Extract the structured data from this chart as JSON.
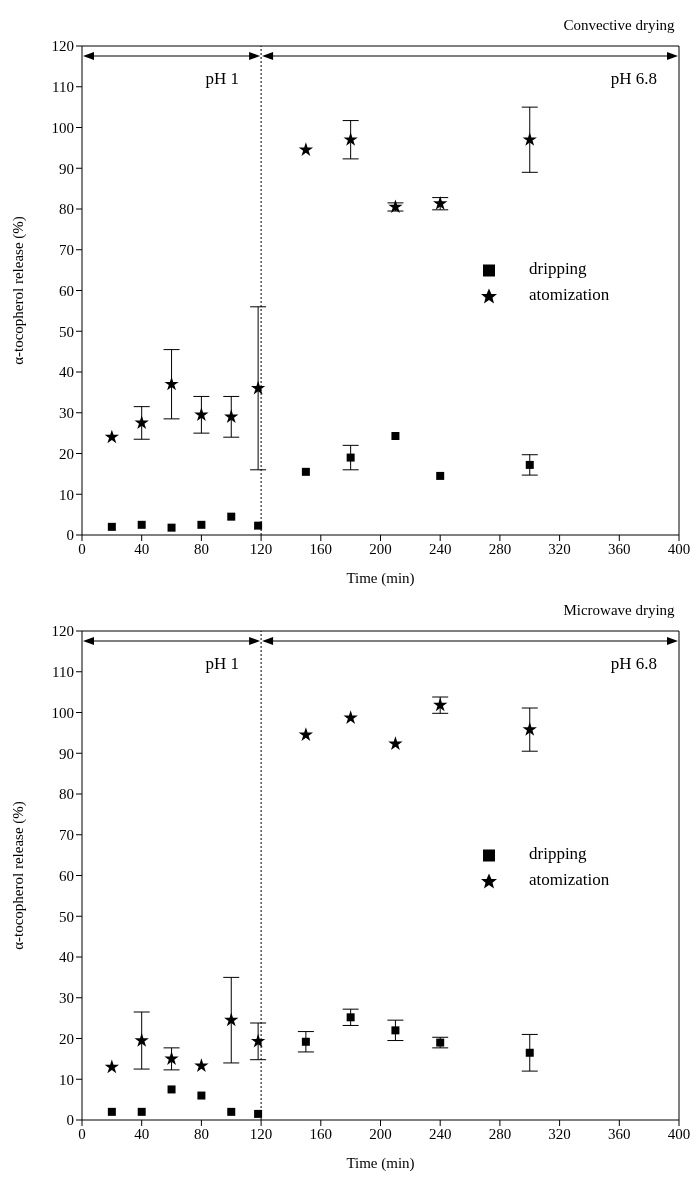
{
  "chart_data": [
    {
      "type": "scatter",
      "title": "Convective drying",
      "xlabel": "Time (min)",
      "ylabel": "α-tocopherol release (%)",
      "x": [
        20,
        40,
        60,
        80,
        100,
        118,
        150,
        180,
        210,
        240,
        300
      ],
      "xlim": [
        0,
        400
      ],
      "xticks": [
        0,
        40,
        80,
        120,
        160,
        200,
        240,
        280,
        320,
        360,
        400
      ],
      "ylim": [
        0,
        120
      ],
      "yticks": [
        0,
        10,
        20,
        30,
        40,
        50,
        60,
        70,
        80,
        90,
        100,
        110,
        120
      ],
      "legend": "right",
      "grid": false,
      "series": [
        {
          "name": "dripping",
          "color": "#000000",
          "marker": "square",
          "values": [
            2,
            2.5,
            1.8,
            2.5,
            4.5,
            2.3,
            15.5,
            19,
            24.3,
            14.5,
            17.2
          ],
          "errors": [
            null,
            null,
            null,
            null,
            null,
            null,
            null,
            3,
            null,
            null,
            2.5
          ]
        },
        {
          "name": "atomization",
          "color": "#000000",
          "marker": "star",
          "values": [
            24,
            27.5,
            37,
            29.5,
            29,
            36,
            94.5,
            97,
            80.5,
            81.3,
            97
          ],
          "errors": [
            null,
            4,
            8.5,
            4.5,
            5,
            20,
            null,
            4.7,
            1,
            1.5,
            8
          ]
        }
      ],
      "ref_lines": [
        {
          "axis": "x",
          "value": 120,
          "line_style": "dotted"
        }
      ],
      "annotations": [
        "pH 1",
        "pH 6.8"
      ]
    },
    {
      "type": "scatter",
      "title": "Microwave drying",
      "xlabel": "Time (min)",
      "ylabel": "α-tocopherol release (%)",
      "x": [
        20,
        40,
        60,
        80,
        100,
        118,
        150,
        180,
        210,
        240,
        300
      ],
      "xlim": [
        0,
        400
      ],
      "xticks": [
        0,
        40,
        80,
        120,
        160,
        200,
        240,
        280,
        320,
        360,
        400
      ],
      "ylim": [
        0,
        120
      ],
      "yticks": [
        0,
        10,
        20,
        30,
        40,
        50,
        60,
        70,
        80,
        90,
        100,
        110,
        120
      ],
      "legend": "right",
      "grid": false,
      "series": [
        {
          "name": "dripping",
          "color": "#000000",
          "marker": "square",
          "values": [
            2,
            2,
            7.5,
            6,
            2,
            1.5,
            19.2,
            25.2,
            22,
            19,
            16.5
          ],
          "errors": [
            null,
            null,
            null,
            null,
            null,
            null,
            2.5,
            2,
            2.5,
            1.3,
            4.5
          ]
        },
        {
          "name": "atomization",
          "color": "#000000",
          "marker": "star",
          "values": [
            13,
            19.5,
            15,
            13.3,
            24.5,
            19.3,
            94.5,
            98.7,
            92.3,
            101.8,
            95.8
          ],
          "errors": [
            null,
            7,
            2.7,
            null,
            10.5,
            4.5,
            null,
            null,
            null,
            2,
            5.3
          ]
        }
      ],
      "ref_lines": [
        {
          "axis": "x",
          "value": 120,
          "line_style": "dotted"
        }
      ],
      "annotations": [
        "pH 1",
        "pH 6.8"
      ]
    }
  ]
}
